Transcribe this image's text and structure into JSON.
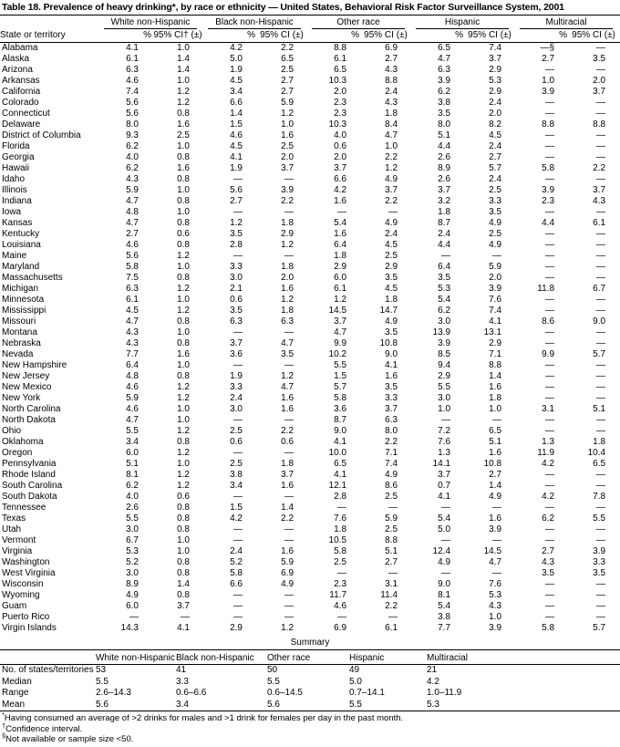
{
  "title": "Table 18. Prevalence of heavy drinking*, by race or ethnicity — United States, Behavioral Risk Factor Surveillance System, 2001",
  "table": {
    "state_header": "State or territory",
    "groups": [
      "White non-Hispanic",
      "Black non-Hispanic",
      "Other race",
      "Hispanic",
      "Multiracial"
    ],
    "subheaders": {
      "pct": "%",
      "ci_first": "95% CI† (±)",
      "ci": "95% CI (±)"
    },
    "rows": [
      {
        "state": "Alabama",
        "values": [
          "4.1",
          "1.0",
          "4.2",
          "2.2",
          "8.8",
          "6.9",
          "6.5",
          "7.4",
          "—§",
          "—"
        ]
      },
      {
        "state": "Alaska",
        "values": [
          "6.1",
          "1.4",
          "5.0",
          "6.5",
          "6.1",
          "2.7",
          "4.7",
          "3.7",
          "2.7",
          "3.5"
        ]
      },
      {
        "state": "Arizona",
        "values": [
          "6.3",
          "1.4",
          "1.9",
          "2.5",
          "6.5",
          "4.3",
          "6.3",
          "2.9",
          "—",
          "—"
        ]
      },
      {
        "state": "Arkansas",
        "values": [
          "4.6",
          "1.0",
          "4.5",
          "2.7",
          "10.3",
          "8.8",
          "3.9",
          "5.3",
          "1.0",
          "2.0"
        ]
      },
      {
        "state": "California",
        "values": [
          "7.4",
          "1.2",
          "3.4",
          "2.7",
          "2.0",
          "2.4",
          "6.2",
          "2.9",
          "3.9",
          "3.7"
        ]
      },
      {
        "state": "Colorado",
        "values": [
          "5.6",
          "1.2",
          "6.6",
          "5.9",
          "2.3",
          "4.3",
          "3.8",
          "2.4",
          "—",
          "—"
        ]
      },
      {
        "state": "Connecticut",
        "values": [
          "5.6",
          "0.8",
          "1.4",
          "1.2",
          "2.3",
          "1.8",
          "3.5",
          "2.0",
          "—",
          "—"
        ]
      },
      {
        "state": "Delaware",
        "values": [
          "8.0",
          "1.6",
          "1.5",
          "1.0",
          "10.3",
          "8.4",
          "8.0",
          "8.2",
          "8.8",
          "8.8"
        ]
      },
      {
        "state": "District of Columbia",
        "values": [
          "9.3",
          "2.5",
          "4.6",
          "1.6",
          "4.0",
          "4.7",
          "5.1",
          "4.5",
          "—",
          "—"
        ]
      },
      {
        "state": "Florida",
        "values": [
          "6.2",
          "1.0",
          "4.5",
          "2.5",
          "0.6",
          "1.0",
          "4.4",
          "2.4",
          "—",
          "—"
        ]
      },
      {
        "state": "Georgia",
        "values": [
          "4.0",
          "0.8",
          "4.1",
          "2.0",
          "2.0",
          "2.2",
          "2.6",
          "2.7",
          "—",
          "—"
        ]
      },
      {
        "state": "Hawaii",
        "values": [
          "6.2",
          "1.6",
          "1.9",
          "3.7",
          "3.7",
          "1.2",
          "8.9",
          "5.7",
          "5.8",
          "2.2"
        ]
      },
      {
        "state": "Idaho",
        "values": [
          "4.3",
          "0.8",
          "—",
          "—",
          "6.6",
          "4.9",
          "2.6",
          "2.4",
          "—",
          "—"
        ]
      },
      {
        "state": "Illinois",
        "values": [
          "5.9",
          "1.0",
          "5.6",
          "3.9",
          "4.2",
          "3.7",
          "3.7",
          "2.5",
          "3.9",
          "3.7"
        ]
      },
      {
        "state": "Indiana",
        "values": [
          "4.7",
          "0.8",
          "2.7",
          "2.2",
          "1.6",
          "2.2",
          "3.2",
          "3.3",
          "2.3",
          "4.3"
        ]
      },
      {
        "state": "Iowa",
        "values": [
          "4.8",
          "1.0",
          "—",
          "—",
          "—",
          "—",
          "1.8",
          "3.5",
          "—",
          "—"
        ]
      },
      {
        "state": "Kansas",
        "values": [
          "4.7",
          "0.8",
          "1.2",
          "1.8",
          "5.4",
          "4.9",
          "8.7",
          "4.9",
          "4.4",
          "6.1"
        ]
      },
      {
        "state": "Kentucky",
        "values": [
          "2.7",
          "0.6",
          "3.5",
          "2.9",
          "1.6",
          "2.4",
          "2.4",
          "2.5",
          "—",
          "—"
        ]
      },
      {
        "state": "Louisiana",
        "values": [
          "4.6",
          "0.8",
          "2.8",
          "1.2",
          "6.4",
          "4.5",
          "4.4",
          "4.9",
          "—",
          "—"
        ]
      },
      {
        "state": "Maine",
        "values": [
          "5.6",
          "1.2",
          "—",
          "—",
          "1.8",
          "2.5",
          "—",
          "—",
          "—",
          "—"
        ]
      },
      {
        "state": "Maryland",
        "values": [
          "5.8",
          "1.0",
          "3.3",
          "1.8",
          "2.9",
          "2.9",
          "6.4",
          "5.9",
          "—",
          "—"
        ]
      },
      {
        "state": "Massachusetts",
        "values": [
          "7.5",
          "0.8",
          "3.0",
          "2.0",
          "6.0",
          "3.5",
          "3.5",
          "2.0",
          "—",
          "—"
        ]
      },
      {
        "state": "Michigan",
        "values": [
          "6.3",
          "1.2",
          "2.1",
          "1.6",
          "6.1",
          "4.5",
          "5.3",
          "3.9",
          "11.8",
          "6.7"
        ]
      },
      {
        "state": "Minnesota",
        "values": [
          "6.1",
          "1.0",
          "0.6",
          "1.2",
          "1.2",
          "1.8",
          "5.4",
          "7.6",
          "—",
          "—"
        ]
      },
      {
        "state": "Mississippi",
        "values": [
          "4.5",
          "1.2",
          "3.5",
          "1.8",
          "14.5",
          "14.7",
          "6.2",
          "7.4",
          "—",
          "—"
        ]
      },
      {
        "state": "Missouri",
        "values": [
          "4.7",
          "0.8",
          "6.3",
          "6.3",
          "3.7",
          "4.9",
          "3.0",
          "4.1",
          "8.6",
          "9.0"
        ]
      },
      {
        "state": "Montana",
        "values": [
          "4.3",
          "1.0",
          "—",
          "—",
          "4.7",
          "3.5",
          "13.9",
          "13.1",
          "—",
          "—"
        ]
      },
      {
        "state": "Nebraska",
        "values": [
          "4.3",
          "0.8",
          "3.7",
          "4.7",
          "9.9",
          "10.8",
          "3.9",
          "2.9",
          "—",
          "—"
        ]
      },
      {
        "state": "Nevada",
        "values": [
          "7.7",
          "1.6",
          "3.6",
          "3.5",
          "10.2",
          "9.0",
          "8.5",
          "7.1",
          "9.9",
          "5.7"
        ]
      },
      {
        "state": "New Hampshire",
        "values": [
          "6.4",
          "1.0",
          "—",
          "—",
          "5.5",
          "4.1",
          "9.4",
          "8.8",
          "—",
          "—"
        ]
      },
      {
        "state": "New Jersey",
        "values": [
          "4.8",
          "0.8",
          "1.9",
          "1.2",
          "1.5",
          "1.6",
          "2.9",
          "1.4",
          "—",
          "—"
        ]
      },
      {
        "state": "New Mexico",
        "values": [
          "4.6",
          "1.2",
          "3.3",
          "4.7",
          "5.7",
          "3.5",
          "5.5",
          "1.6",
          "—",
          "—"
        ]
      },
      {
        "state": "New York",
        "values": [
          "5.9",
          "1.2",
          "2.4",
          "1.6",
          "5.8",
          "3.3",
          "3.0",
          "1.8",
          "—",
          "—"
        ]
      },
      {
        "state": "North Carolina",
        "values": [
          "4.6",
          "1.0",
          "3.0",
          "1.6",
          "3.6",
          "3.7",
          "1.0",
          "1.0",
          "3.1",
          "5.1"
        ]
      },
      {
        "state": "North Dakota",
        "values": [
          "4.7",
          "1.0",
          "—",
          "—",
          "8.7",
          "6.3",
          "—",
          "—",
          "—",
          "—"
        ]
      },
      {
        "state": "Ohio",
        "values": [
          "5.5",
          "1.2",
          "2.5",
          "2.2",
          "9.0",
          "8.0",
          "7.2",
          "6.5",
          "—",
          "—"
        ]
      },
      {
        "state": "Oklahoma",
        "values": [
          "3.4",
          "0.8",
          "0.6",
          "0.6",
          "4.1",
          "2.2",
          "7.6",
          "5.1",
          "1.3",
          "1.8"
        ]
      },
      {
        "state": "Oregon",
        "values": [
          "6.0",
          "1.2",
          "—",
          "—",
          "10.0",
          "7.1",
          "1.3",
          "1.6",
          "11.9",
          "10.4"
        ]
      },
      {
        "state": "Pennsylvania",
        "values": [
          "5.1",
          "1.0",
          "2.5",
          "1.8",
          "6.5",
          "7.4",
          "14.1",
          "10.8",
          "4.2",
          "6.5"
        ]
      },
      {
        "state": "Rhode Island",
        "values": [
          "8.1",
          "1.2",
          "3.8",
          "3.7",
          "4.1",
          "4.9",
          "3.7",
          "2.7",
          "—",
          "—"
        ]
      },
      {
        "state": "South Carolina",
        "values": [
          "6.2",
          "1.2",
          "3.4",
          "1.6",
          "12.1",
          "8.6",
          "0.7",
          "1.4",
          "—",
          "—"
        ]
      },
      {
        "state": "South Dakota",
        "values": [
          "4.0",
          "0.6",
          "—",
          "—",
          "2.8",
          "2.5",
          "4.1",
          "4.9",
          "4.2",
          "7.8"
        ]
      },
      {
        "state": "Tennessee",
        "values": [
          "2.6",
          "0.8",
          "1.5",
          "1.4",
          "—",
          "—",
          "—",
          "—",
          "—",
          "—"
        ]
      },
      {
        "state": "Texas",
        "values": [
          "5.5",
          "0.8",
          "4.2",
          "2.2",
          "7.6",
          "5.9",
          "5.4",
          "1.6",
          "6.2",
          "5.5"
        ]
      },
      {
        "state": "Utah",
        "values": [
          "3.0",
          "0.8",
          "—",
          "—",
          "1.8",
          "2.5",
          "5.0",
          "3.9",
          "—",
          "—"
        ]
      },
      {
        "state": "Vermont",
        "values": [
          "6.7",
          "1.0",
          "—",
          "—",
          "10.5",
          "8.8",
          "—",
          "—",
          "—",
          "—"
        ]
      },
      {
        "state": "Virginia",
        "values": [
          "5.3",
          "1.0",
          "2.4",
          "1.6",
          "5.8",
          "5.1",
          "12.4",
          "14.5",
          "2.7",
          "3.9"
        ]
      },
      {
        "state": "Washington",
        "values": [
          "5.2",
          "0.8",
          "5.2",
          "5.9",
          "2.5",
          "2.7",
          "4.9",
          "4.7",
          "4.3",
          "3.3"
        ]
      },
      {
        "state": "West Virginia",
        "values": [
          "3.0",
          "0.8",
          "5.8",
          "6.9",
          "—",
          "—",
          "—",
          "—",
          "3.5",
          "3.5"
        ]
      },
      {
        "state": "Wisconsin",
        "values": [
          "8.9",
          "1.4",
          "6.6",
          "4.9",
          "2.3",
          "3.1",
          "9.0",
          "7.6",
          "—",
          "—"
        ]
      },
      {
        "state": "Wyoming",
        "values": [
          "4.9",
          "0.8",
          "—",
          "—",
          "11.7",
          "11.4",
          "8.1",
          "5.3",
          "—",
          "—"
        ]
      },
      {
        "state": "Guam",
        "values": [
          "6.0",
          "3.7",
          "—",
          "—",
          "4.6",
          "2.2",
          "5.4",
          "4.3",
          "—",
          "—"
        ]
      },
      {
        "state": "Puerto Rico",
        "values": [
          "—",
          "—",
          "—",
          "—",
          "—",
          "—",
          "3.8",
          "1.0",
          "—",
          "—"
        ]
      },
      {
        "state": "Virgin Islands",
        "values": [
          "14.3",
          "4.1",
          "2.9",
          "1.2",
          "6.9",
          "6.1",
          "7.7",
          "3.9",
          "5.8",
          "5.7"
        ]
      }
    ]
  },
  "summary": {
    "title": "Summary",
    "headers": [
      "White non-Hispanic",
      "Black non-Hispanic",
      "Other race",
      "Hispanic",
      "Multiracial"
    ],
    "rows": [
      {
        "label": "No. of states/territories",
        "values": [
          "53",
          "41",
          "50",
          "49",
          "21"
        ]
      },
      {
        "label": "Median",
        "values": [
          "5.5",
          "3.3",
          "5.5",
          "5.0",
          "4.2"
        ]
      },
      {
        "label": "Range",
        "values": [
          "2.6–14.3",
          "0.6–6.6",
          "0.6–14.5",
          "0.7–14.1",
          "1.0–11.9"
        ]
      },
      {
        "label": "Mean",
        "values": [
          "5.6",
          "3.4",
          "5.6",
          "5.5",
          "5.3"
        ]
      }
    ]
  },
  "footnotes": [
    {
      "marker": "*",
      "text": "Having consumed an average of >2 drinks for males and >1 drink for females per day in the past month."
    },
    {
      "marker": "†",
      "text": "Confidence interval."
    },
    {
      "marker": "§",
      "text": "Not available or sample size <50."
    }
  ]
}
